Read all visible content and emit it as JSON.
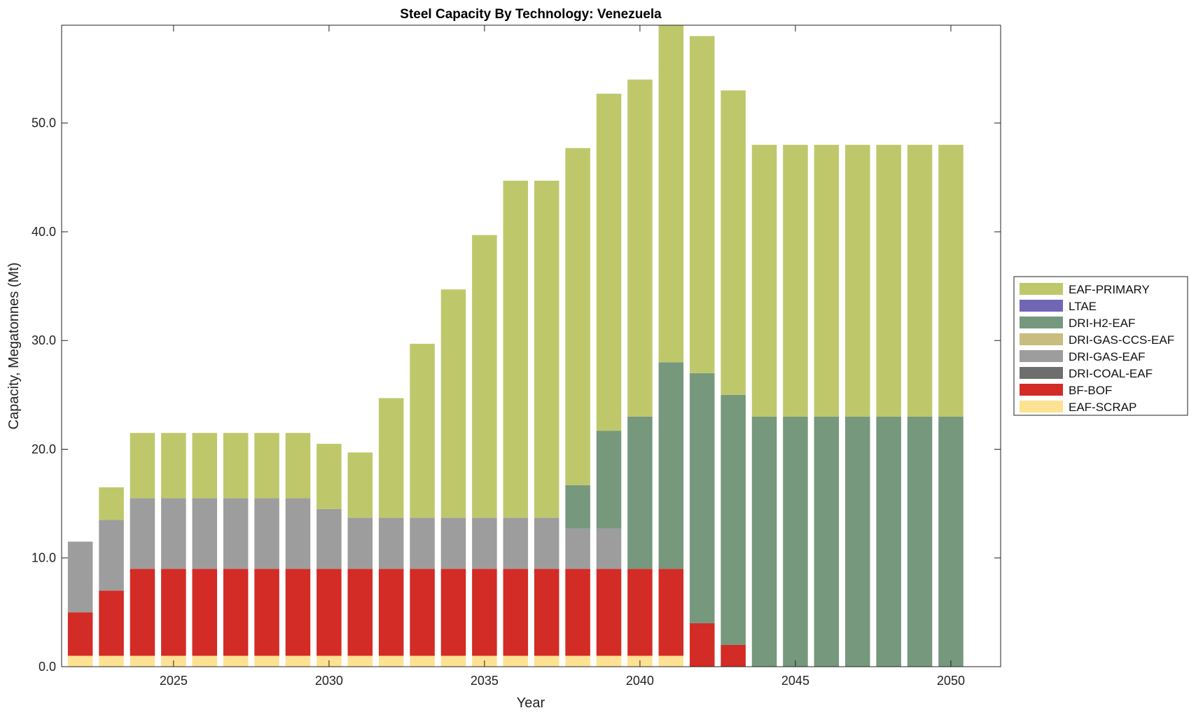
{
  "chart_data": {
    "type": "bar",
    "stacked": true,
    "title": "Steel Capacity By Technology: Venezuela",
    "xlabel": "Year",
    "ylabel": "Capacity, Megatonnes (Mt)",
    "ylim": [
      0,
      59
    ],
    "xlim": [
      2021.4,
      2051.6
    ],
    "yticks": [
      0,
      10,
      20,
      30,
      40,
      50
    ],
    "ytick_labels": [
      "0.0",
      "10.0",
      "20.0",
      "30.0",
      "40.0",
      "50.0"
    ],
    "xticks": [
      2025,
      2030,
      2035,
      2040,
      2045,
      2050
    ],
    "xtick_labels": [
      "2025",
      "2030",
      "2035",
      "2040",
      "2045",
      "2050"
    ],
    "legend_position": "right",
    "categories": [
      2022,
      2023,
      2024,
      2025,
      2026,
      2027,
      2028,
      2029,
      2030,
      2031,
      2032,
      2033,
      2034,
      2035,
      2036,
      2037,
      2038,
      2039,
      2040,
      2041,
      2042,
      2043,
      2044,
      2045,
      2046,
      2047,
      2048,
      2049,
      2050
    ],
    "series": [
      {
        "name": "EAF-SCRAP",
        "color": "#fde293",
        "values": [
          1,
          1,
          1,
          1,
          1,
          1,
          1,
          1,
          1,
          1,
          1,
          1,
          1,
          1,
          1,
          1,
          1,
          1,
          1,
          1,
          0,
          0,
          0,
          0,
          0,
          0,
          0,
          0,
          0
        ]
      },
      {
        "name": "BF-BOF",
        "color": "#d32b25",
        "values": [
          4,
          6,
          8,
          8,
          8,
          8,
          8,
          8,
          8,
          8,
          8,
          8,
          8,
          8,
          8,
          8,
          8,
          8,
          8,
          8,
          4,
          2,
          0,
          0,
          0,
          0,
          0,
          0,
          0
        ]
      },
      {
        "name": "DRI-COAL-EAF",
        "color": "#6e6e6e",
        "values": [
          0,
          0,
          0,
          0,
          0,
          0,
          0,
          0,
          0,
          0,
          0,
          0,
          0,
          0,
          0,
          0,
          0,
          0,
          0,
          0,
          0,
          0,
          0,
          0,
          0,
          0,
          0,
          0,
          0
        ]
      },
      {
        "name": "DRI-GAS-EAF",
        "color": "#9d9d9d",
        "values": [
          6.5,
          6.5,
          6.5,
          6.5,
          6.5,
          6.5,
          6.5,
          6.5,
          5.5,
          4.7,
          4.7,
          4.7,
          4.7,
          4.7,
          4.7,
          4.7,
          3.7,
          3.7,
          0,
          0,
          0,
          0,
          0,
          0,
          0,
          0,
          0,
          0,
          0
        ]
      },
      {
        "name": "DRI-GAS-CCS-EAF",
        "color": "#c8bd7f",
        "values": [
          0,
          0,
          0,
          0,
          0,
          0,
          0,
          0,
          0,
          0,
          0,
          0,
          0,
          0,
          0,
          0,
          0,
          0,
          0,
          0,
          0,
          0,
          0,
          0,
          0,
          0,
          0,
          0,
          0
        ]
      },
      {
        "name": "DRI-H2-EAF",
        "color": "#76987d",
        "values": [
          0,
          0,
          0,
          0,
          0,
          0,
          0,
          0,
          0,
          0,
          0,
          0,
          0,
          0,
          0,
          0,
          4,
          9,
          14,
          19,
          23,
          23,
          23,
          23,
          23,
          23,
          23,
          23,
          23
        ]
      },
      {
        "name": "LTAE",
        "color": "#7166b6",
        "values": [
          0,
          0,
          0,
          0,
          0,
          0,
          0,
          0,
          0,
          0,
          0,
          0,
          0,
          0,
          0,
          0,
          0,
          0,
          0,
          0,
          0,
          0,
          0,
          0,
          0,
          0,
          0,
          0,
          0
        ]
      },
      {
        "name": "EAF-PRIMARY",
        "color": "#bec86b",
        "values": [
          0,
          3,
          6,
          6,
          6,
          6,
          6,
          6,
          6,
          6,
          11,
          16,
          21,
          26,
          31,
          31,
          31,
          31,
          31,
          31,
          31,
          28,
          25,
          25,
          25,
          25,
          25,
          25,
          25
        ]
      }
    ],
    "legend_order": [
      "EAF-PRIMARY",
      "LTAE",
      "DRI-H2-EAF",
      "DRI-GAS-CCS-EAF",
      "DRI-GAS-EAF",
      "DRI-COAL-EAF",
      "BF-BOF",
      "EAF-SCRAP"
    ]
  }
}
